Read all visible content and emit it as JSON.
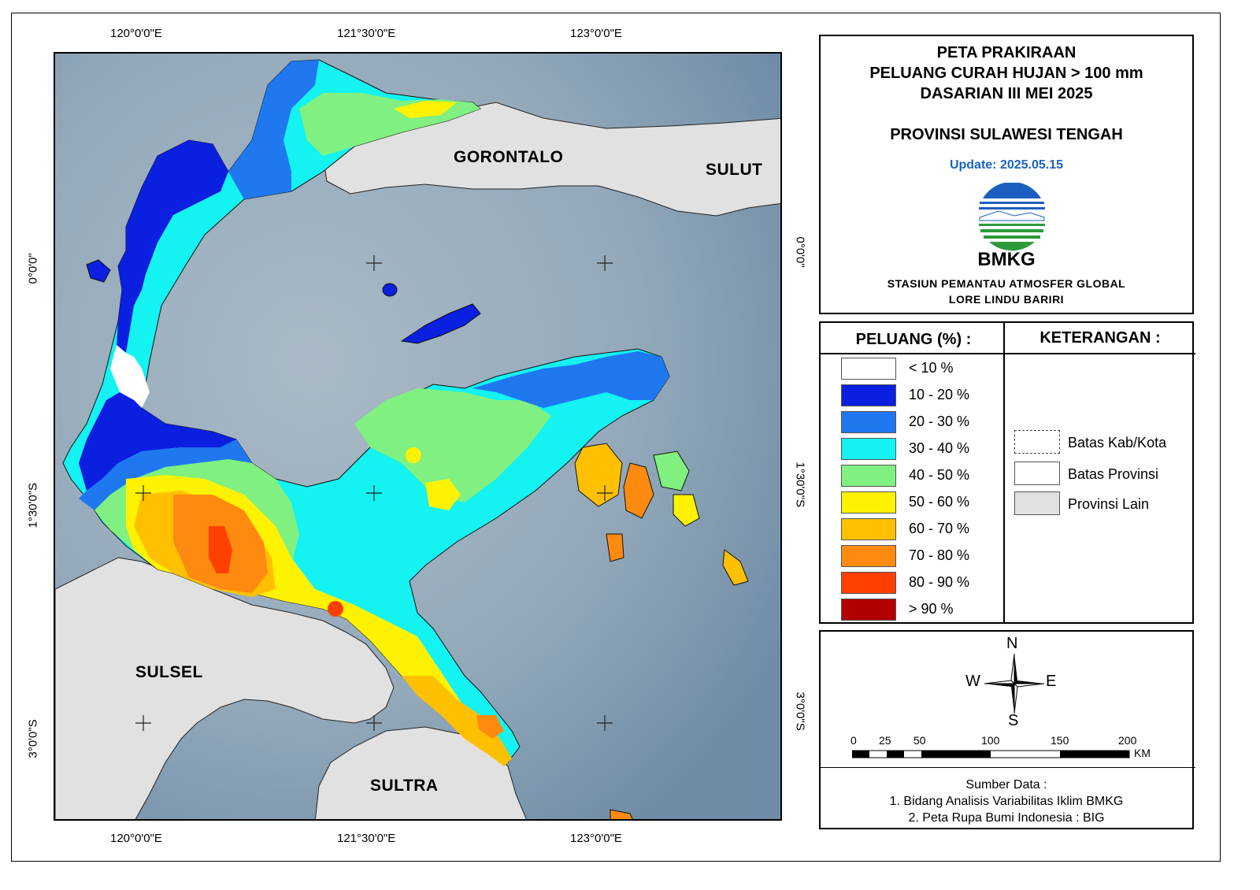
{
  "title": {
    "line1": "PETA PRAKIRAAN",
    "line2": "PELUANG CURAH HUJAN > 100 mm",
    "line3": "DASARIAN III MEI 2025",
    "province": "PROVINSI SULAWESI TENGAH",
    "update": "Update: 2025.05.15"
  },
  "logo": {
    "text": "BMKG",
    "station_line1": "STASIUN PEMANTAU ATMOSFER GLOBAL",
    "station_line2": "LORE LINDU BARIRI",
    "icon": "bmkg-logo-icon"
  },
  "map": {
    "top_labels": [
      "120°0'0\"E",
      "121°30'0\"E",
      "123°0'0\"E"
    ],
    "bottom_labels": [
      "120°0'0\"E",
      "121°30'0\"E",
      "123°0'0\"E"
    ],
    "left_labels": [
      "0°0'0\"",
      "1°30'0\"S",
      "3°0'0\"S"
    ],
    "right_labels": [
      "0°0'0\"",
      "1°30'0\"S",
      "3°0'0\"S"
    ],
    "regions": {
      "gorontalo": "GORONTALO",
      "sulut": "SULUT",
      "sulsel": "SULSEL",
      "sultra": "SULTRA"
    },
    "colors": {
      "sea": "#8fa6b8",
      "other_province": "#e1e1e1"
    }
  },
  "legend": {
    "title": "PELUANG (%) :",
    "classes": [
      {
        "label": "< 10 %",
        "color": "#ffffff"
      },
      {
        "label": "10 - 20 %",
        "color": "#0a1fe0"
      },
      {
        "label": "20 - 30 %",
        "color": "#1f78f0"
      },
      {
        "label": "30 - 40 %",
        "color": "#14f2f2"
      },
      {
        "label": "40 - 50 %",
        "color": "#80f080"
      },
      {
        "label": "50 - 60 %",
        "color": "#fff200"
      },
      {
        "label": "60 - 70 %",
        "color": "#ffc000"
      },
      {
        "label": "70 - 80 %",
        "color": "#ff8a10"
      },
      {
        "label": "80 - 90 %",
        "color": "#ff4000"
      },
      {
        "label": "> 90 %",
        "color": "#b00000"
      }
    ]
  },
  "keterangan": {
    "title": "KETERANGAN :",
    "items": [
      {
        "label": "Batas Kab/Kota"
      },
      {
        "label": "Batas Provinsi"
      },
      {
        "label": "Provinsi Lain",
        "color": "#e1e1e1"
      }
    ]
  },
  "compass": {
    "n": "N",
    "s": "S",
    "e": "E",
    "w": "W"
  },
  "scale": {
    "ticks": [
      "0",
      "25",
      "50",
      "100",
      "150",
      "200"
    ],
    "unit": "KM"
  },
  "source": {
    "title": "Sumber Data :",
    "line1": "1. Bidang Analisis Variabilitas Iklim BMKG",
    "line2": "2. Peta Rupa Bumi Indonesia : BIG"
  }
}
